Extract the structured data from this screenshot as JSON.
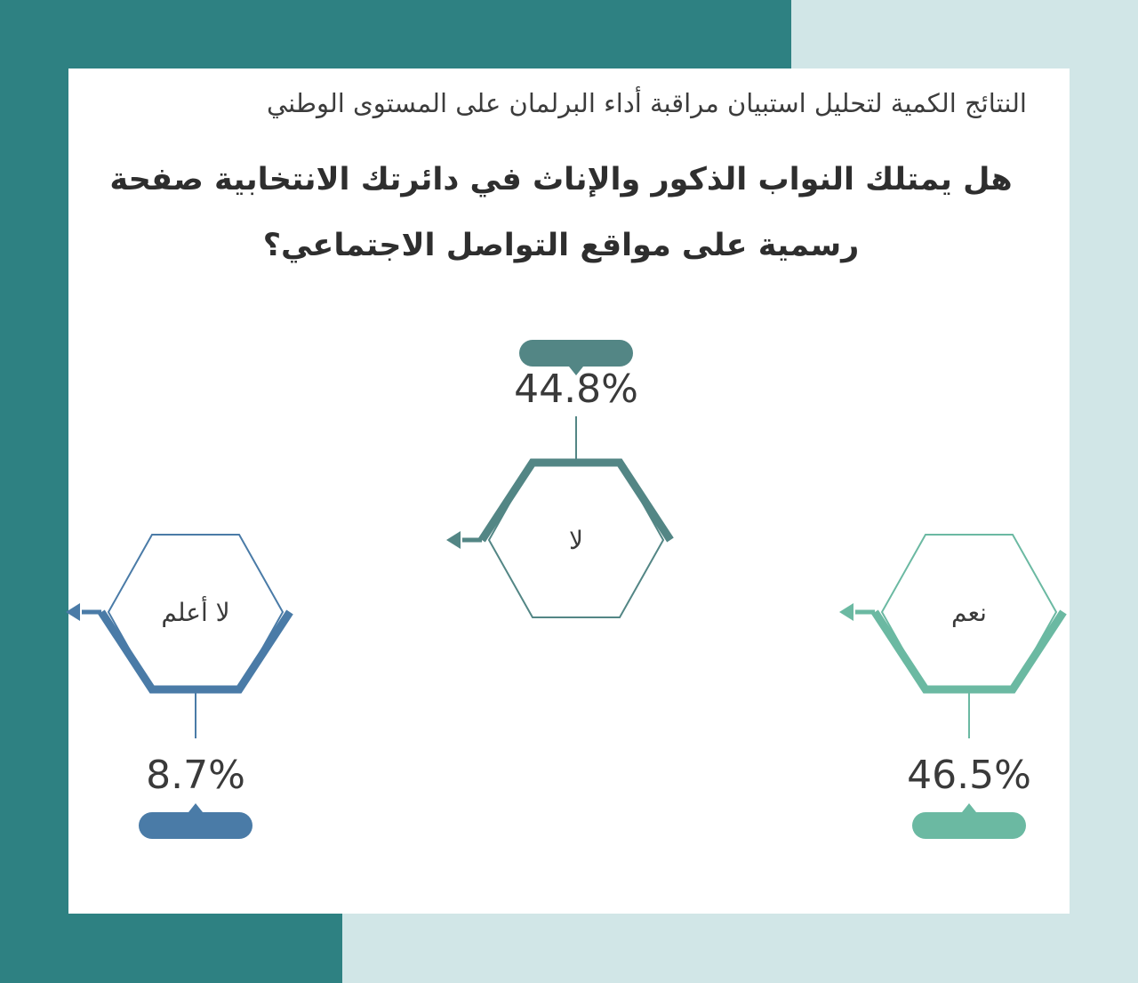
{
  "header": {
    "subtitle": "النتائج الكمية لتحليل استبيان مراقبة أداء البرلمان على المستوى الوطني",
    "title": "هل يمتلك النواب الذكور والإناث في دائرتك الانتخابية صفحة رسمية على مواقع التواصل الاجتماعي؟"
  },
  "chart_data": {
    "type": "pie",
    "categories": [
      "نعم",
      "لا",
      "لا أعلم"
    ],
    "values": [
      46.5,
      44.8,
      8.7
    ],
    "value_labels": [
      "46.5%",
      "44.8%",
      "8.7%"
    ],
    "colors": [
      "#6bb9a2",
      "#538685",
      "#4a7ba7"
    ]
  }
}
